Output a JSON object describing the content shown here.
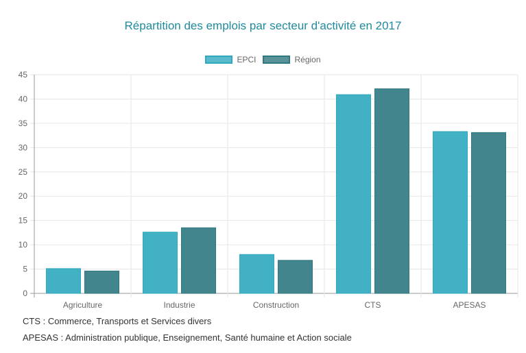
{
  "chart_data": {
    "type": "bar",
    "title": "Répartition des emplois par secteur d'activité en 2017",
    "categories": [
      "Agriculture",
      "Industrie",
      "Construction",
      "CTS",
      "APESAS"
    ],
    "series": [
      {
        "name": "EPCI",
        "values": [
          5.1,
          12.6,
          8.0,
          40.9,
          33.3
        ],
        "color": "#2fa9be"
      },
      {
        "name": "Région",
        "values": [
          4.6,
          13.5,
          6.8,
          42.1,
          33.1
        ],
        "color": "#2f7880"
      }
    ],
    "ylim": [
      0,
      45
    ],
    "yticks": [
      0,
      5,
      10,
      15,
      20,
      25,
      30,
      35,
      40,
      45
    ],
    "grid": true,
    "legend": "top-center"
  },
  "footnotes": [
    "CTS : Commerce, Transports et Services divers",
    "APESAS : Administration publique, Enseignement, Santé humaine et Action sociale"
  ]
}
